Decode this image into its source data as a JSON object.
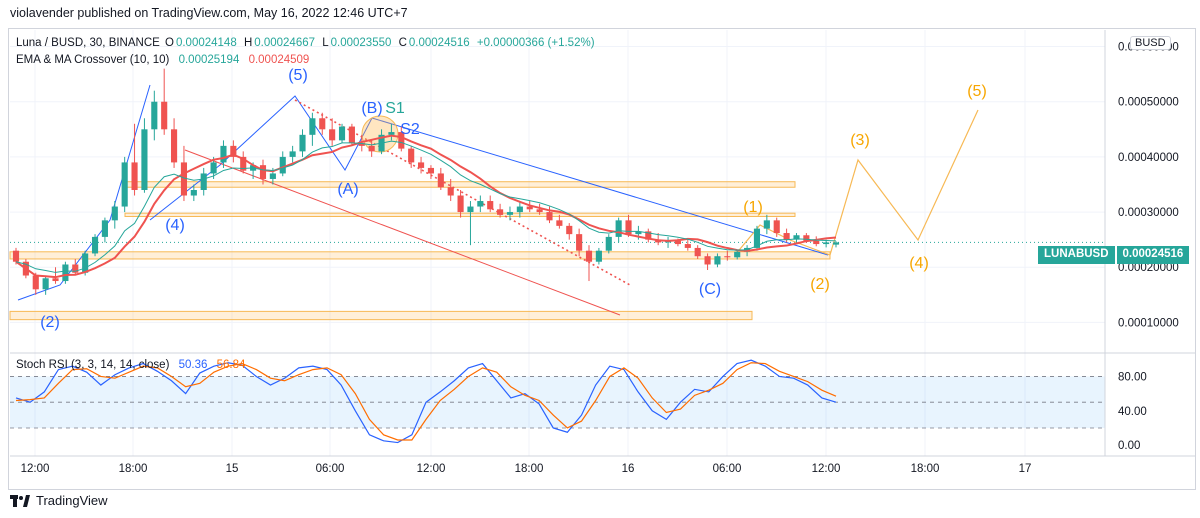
{
  "header": {
    "published": "violavender published on TradingView.com, May 16, 2022 12:46 UTC+7"
  },
  "legend": {
    "symbol": "Luna / BUSD, 30, BINANCE",
    "o_label": "O",
    "o": "0.00024148",
    "h_label": "H",
    "h": "0.00024667",
    "l_label": "L",
    "l": "0.00023550",
    "c_label": "C",
    "c": "0.00024516",
    "change": "+0.00000366 (+1.52%)",
    "ema_title": "EMA & MA Crossover (10, 10)",
    "ema_val": "0.00025194",
    "ma_val": "0.00024509",
    "stoch_title": "Stoch RSI (3, 3, 14, 14, close)",
    "stoch_k": "50.36",
    "stoch_d": "56.84"
  },
  "currency": "BUSD",
  "price_tag": {
    "symbol": "LUNABUSD",
    "value": "0.00024516"
  },
  "colors": {
    "up": "#26a69a",
    "down": "#ef5350",
    "ema": "#ef5350",
    "ma": "#26a69a",
    "blue": "#2962ff",
    "orange": "#f7a600",
    "k": "#2962ff",
    "d": "#ff6d00"
  },
  "footer": {
    "brand": "TradingView"
  },
  "annotations": {
    "w5": "(5)",
    "w4": "(4)",
    "w2": "(2)",
    "wA": "(A)",
    "wB": "(B)",
    "wC": "(C)",
    "s1": "S1",
    "s2": "S2",
    "p1": "(1)",
    "p2": "(2)",
    "p3": "(3)",
    "p4": "(4)",
    "p5": "(5)"
  },
  "chart_data": [
    {
      "type": "candlestick",
      "title": "Luna / BUSD, 30, BINANCE",
      "y_ticks": [
        "0.00060000",
        "0.00050000",
        "0.00040000",
        "0.00030000",
        "0.00020000",
        "0.00010000"
      ],
      "y_tick_values": [
        0.0006,
        0.0005,
        0.0004,
        0.0003,
        0.0002,
        0.0001
      ],
      "ylim": [
        5e-05,
        0.00063
      ],
      "x_ticks": [
        "12:00",
        "18:00",
        "15",
        "06:00",
        "12:00",
        "18:00",
        "16",
        "06:00",
        "12:00",
        "18:00",
        "17"
      ],
      "candles": [
        [
          0.00023,
          0.000235,
          0.000205,
          0.00021
        ],
        [
          0.00021,
          0.000215,
          0.00018,
          0.000185
        ],
        [
          0.000185,
          0.00019,
          0.00015,
          0.00016
        ],
        [
          0.00016,
          0.000185,
          0.00015,
          0.00018
        ],
        [
          0.00018,
          0.0002,
          0.00017,
          0.000175
        ],
        [
          0.000175,
          0.00021,
          0.00017,
          0.000205
        ],
        [
          0.000205,
          0.000215,
          0.000185,
          0.00019
        ],
        [
          0.00019,
          0.00023,
          0.000185,
          0.000225
        ],
        [
          0.000225,
          0.00026,
          0.00022,
          0.000255
        ],
        [
          0.000255,
          0.00029,
          0.000245,
          0.000285
        ],
        [
          0.000285,
          0.00032,
          0.00027,
          0.00031
        ],
        [
          0.00031,
          0.0004,
          0.0003,
          0.00039
        ],
        [
          0.00039,
          0.00046,
          0.00033,
          0.00034
        ],
        [
          0.00034,
          0.00047,
          0.000335,
          0.00045
        ],
        [
          0.00045,
          0.00052,
          0.00043,
          0.0005
        ],
        [
          0.0005,
          0.00056,
          0.00044,
          0.00045
        ],
        [
          0.00045,
          0.00047,
          0.00038,
          0.00039
        ],
        [
          0.00039,
          0.00042,
          0.00032,
          0.00033
        ],
        [
          0.00033,
          0.00035,
          0.00032,
          0.00034
        ],
        [
          0.00034,
          0.00038,
          0.00033,
          0.00037
        ],
        [
          0.00037,
          0.0004,
          0.00036,
          0.00039
        ],
        [
          0.00039,
          0.00043,
          0.00038,
          0.00042
        ],
        [
          0.00042,
          0.00043,
          0.00039,
          0.0004
        ],
        [
          0.0004,
          0.00041,
          0.00037,
          0.000375
        ],
        [
          0.000375,
          0.00039,
          0.00036,
          0.000385
        ],
        [
          0.000385,
          0.000395,
          0.00035,
          0.00036
        ],
        [
          0.00036,
          0.00038,
          0.00035,
          0.00037
        ],
        [
          0.00037,
          0.00041,
          0.000365,
          0.0004
        ],
        [
          0.0004,
          0.00042,
          0.00039,
          0.00041
        ],
        [
          0.00041,
          0.00045,
          0.0004,
          0.00044
        ],
        [
          0.00044,
          0.00048,
          0.00042,
          0.00047
        ],
        [
          0.00047,
          0.00048,
          0.00044,
          0.00045
        ],
        [
          0.00045,
          0.00047,
          0.00042,
          0.00043
        ],
        [
          0.00043,
          0.00046,
          0.000425,
          0.000455
        ],
        [
          0.000455,
          0.00046,
          0.00042,
          0.000425
        ],
        [
          0.000425,
          0.00044,
          0.00041,
          0.00042
        ],
        [
          0.00042,
          0.00043,
          0.0004,
          0.00041
        ],
        [
          0.00041,
          0.00045,
          0.000405,
          0.00044
        ],
        [
          0.00044,
          0.00046,
          0.00043,
          0.000445
        ],
        [
          0.000445,
          0.000455,
          0.00041,
          0.000415
        ],
        [
          0.000415,
          0.00042,
          0.00038,
          0.00039
        ],
        [
          0.00039,
          0.0004,
          0.00037,
          0.00038
        ],
        [
          0.00038,
          0.000385,
          0.00036,
          0.00037
        ],
        [
          0.00037,
          0.00038,
          0.00034,
          0.000345
        ],
        [
          0.000345,
          0.00036,
          0.00032,
          0.00033
        ],
        [
          0.00033,
          0.00034,
          0.00029,
          0.0003
        ],
        [
          0.0003,
          0.00032,
          0.00024,
          0.00031
        ],
        [
          0.00031,
          0.00033,
          0.0003,
          0.00032
        ],
        [
          0.00032,
          0.00033,
          0.0003,
          0.000305
        ],
        [
          0.000305,
          0.000315,
          0.00029,
          0.000295
        ],
        [
          0.000295,
          0.00031,
          0.000285,
          0.0003
        ],
        [
          0.0003,
          0.00032,
          0.00029,
          0.00031
        ],
        [
          0.00031,
          0.00032,
          0.0003,
          0.000305
        ],
        [
          0.000305,
          0.000315,
          0.000295,
          0.0003
        ],
        [
          0.0003,
          0.00031,
          0.00028,
          0.000285
        ],
        [
          0.000285,
          0.000295,
          0.00027,
          0.000275
        ],
        [
          0.000275,
          0.00028,
          0.00025,
          0.00026
        ],
        [
          0.00026,
          0.00027,
          0.00022,
          0.00023
        ],
        [
          0.00023,
          0.00024,
          0.000175,
          0.00021
        ],
        [
          0.00021,
          0.000235,
          0.000205,
          0.00023
        ],
        [
          0.00023,
          0.00026,
          0.000225,
          0.000255
        ],
        [
          0.000255,
          0.00029,
          0.000245,
          0.000285
        ],
        [
          0.000285,
          0.000295,
          0.000255,
          0.00026
        ],
        [
          0.00026,
          0.000275,
          0.00025,
          0.000265
        ],
        [
          0.000265,
          0.00027,
          0.000245,
          0.00025
        ],
        [
          0.00025,
          0.000262,
          0.00024,
          0.000245
        ],
        [
          0.000245,
          0.000255,
          0.000235,
          0.000248
        ],
        [
          0.000248,
          0.000252,
          0.000238,
          0.000242
        ],
        [
          0.000242,
          0.00025,
          0.00023,
          0.000235
        ],
        [
          0.000235,
          0.00024,
          0.000215,
          0.00022
        ],
        [
          0.00022,
          0.000225,
          0.000195,
          0.000205
        ],
        [
          0.000205,
          0.000225,
          0.0002,
          0.00022
        ],
        [
          0.00022,
          0.00023,
          0.000212,
          0.000218
        ],
        [
          0.000218,
          0.000232,
          0.000214,
          0.000228
        ],
        [
          0.000228,
          0.00024,
          0.00022,
          0.000235
        ],
        [
          0.000235,
          0.000275,
          0.00023,
          0.00027
        ],
        [
          0.00027,
          0.000295,
          0.00026,
          0.000285
        ],
        [
          0.000285,
          0.00029,
          0.000255,
          0.000262
        ],
        [
          0.000262,
          0.00027,
          0.000245,
          0.00025
        ],
        [
          0.00025,
          0.000262,
          0.000244,
          0.000258
        ],
        [
          0.000258,
          0.000262,
          0.000244,
          0.000248
        ],
        [
          0.000248,
          0.000256,
          0.000238,
          0.000242
        ],
        [
          0.000242,
          0.00025,
          0.000236,
          0.000245
        ],
        [
          0.000241,
          0.000247,
          0.000236,
          0.000245
        ]
      ],
      "support_zones": [
        [
          0.000355,
          0.000345
        ],
        [
          0.000298,
          0.000292
        ],
        [
          0.000228,
          0.000215
        ],
        [
          0.00012,
          0.000105
        ]
      ],
      "last_price": 0.00024516
    },
    {
      "type": "line",
      "title": "Stoch RSI (3, 3, 14, 14, close)",
      "y_ticks": [
        "80.00",
        "40.00",
        "0.00"
      ],
      "ylim": [
        -8,
        105
      ],
      "band": [
        20,
        80
      ],
      "series": [
        {
          "name": "K",
          "values": [
            55,
            50,
            62,
            88,
            92,
            85,
            70,
            82,
            90,
            95,
            86,
            75,
            60,
            84,
            92,
            96,
            93,
            80,
            70,
            78,
            90,
            92,
            88,
            70,
            40,
            12,
            5,
            3,
            12,
            50,
            62,
            75,
            90,
            95,
            75,
            55,
            60,
            48,
            20,
            15,
            35,
            70,
            92,
            88,
            62,
            40,
            30,
            50,
            65,
            62,
            80,
            95,
            99,
            92,
            80,
            78,
            70,
            55,
            50
          ]
        },
        {
          "name": "D",
          "values": [
            52,
            53,
            55,
            72,
            88,
            89,
            80,
            78,
            85,
            92,
            90,
            80,
            68,
            72,
            85,
            92,
            95,
            88,
            78,
            75,
            82,
            88,
            90,
            82,
            60,
            30,
            12,
            6,
            6,
            30,
            52,
            65,
            80,
            90,
            85,
            68,
            58,
            52,
            35,
            20,
            28,
            52,
            80,
            90,
            78,
            55,
            38,
            42,
            58,
            64,
            72,
            88,
            96,
            95,
            86,
            80,
            74,
            64,
            57
          ]
        }
      ]
    }
  ]
}
